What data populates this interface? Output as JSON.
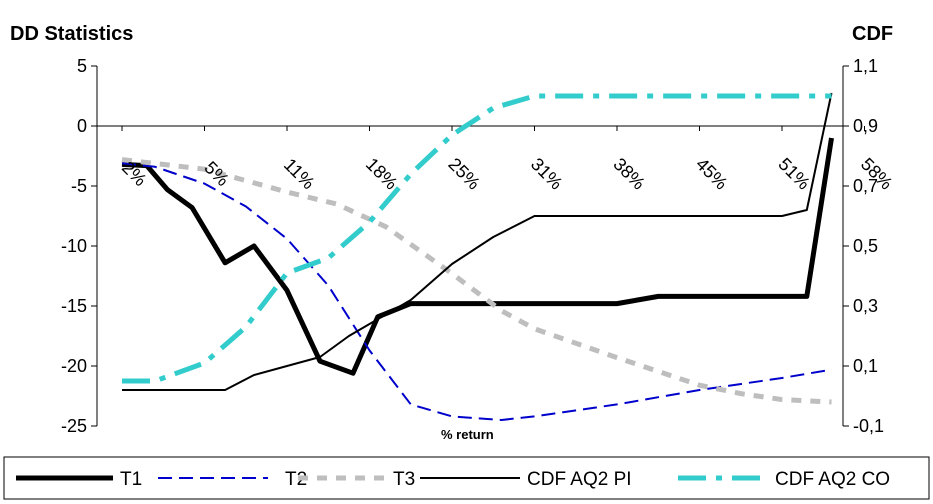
{
  "chart_data": {
    "type": "line",
    "left_axis_title": "DD Statistics",
    "right_axis_title": "CDF",
    "xlabel": "% return",
    "categories": [
      "2%",
      "5%",
      "11%",
      "18%",
      "25%",
      "31%",
      "38%",
      "45%",
      "51%",
      "58%"
    ],
    "y_left": {
      "min": -25,
      "max": 5,
      "ticks": [
        "5",
        "0",
        "-5",
        "-10",
        "-15",
        "-20",
        "-25"
      ]
    },
    "y_right": {
      "min": -0.1,
      "max": 1.1,
      "ticks": [
        "1,1",
        "0,9",
        "0,7",
        "0,5",
        "0,3",
        "0,1",
        "-0,1"
      ]
    },
    "grid": false,
    "legend_position": "bottom",
    "series": [
      {
        "name": "T1",
        "axis": "left",
        "color": "#000000",
        "dash": "solid",
        "width": 5,
        "points": [
          [
            0.0,
            -3.2
          ],
          [
            0.3,
            -3.3
          ],
          [
            0.55,
            -5.3
          ],
          [
            0.85,
            -6.8
          ],
          [
            1.25,
            -11.4
          ],
          [
            1.6,
            -10.0
          ],
          [
            2.0,
            -13.7
          ],
          [
            2.4,
            -19.6
          ],
          [
            2.8,
            -20.6
          ],
          [
            3.1,
            -15.9
          ],
          [
            3.5,
            -14.8
          ],
          [
            4.0,
            -14.8
          ],
          [
            4.5,
            -14.8
          ],
          [
            5.0,
            -14.8
          ],
          [
            5.5,
            -14.8
          ],
          [
            6.0,
            -14.8
          ],
          [
            6.5,
            -14.2
          ],
          [
            7.0,
            -14.2
          ],
          [
            7.5,
            -14.2
          ],
          [
            8.0,
            -14.2
          ],
          [
            8.3,
            -14.2
          ],
          [
            8.6,
            -1.0
          ]
        ]
      },
      {
        "name": "T2",
        "axis": "left",
        "color": "#0000cc",
        "dash": "long",
        "width": 2,
        "points": [
          [
            0.0,
            -3.1
          ],
          [
            0.4,
            -3.4
          ],
          [
            1.0,
            -4.8
          ],
          [
            1.5,
            -6.7
          ],
          [
            2.0,
            -9.4
          ],
          [
            2.5,
            -13.3
          ],
          [
            3.0,
            -18.7
          ],
          [
            3.5,
            -23.2
          ],
          [
            4.0,
            -24.2
          ],
          [
            4.6,
            -24.5
          ],
          [
            5.0,
            -24.2
          ],
          [
            6.0,
            -23.2
          ],
          [
            7.0,
            -22.0
          ],
          [
            8.0,
            -21.0
          ],
          [
            8.6,
            -20.3
          ]
        ]
      },
      {
        "name": "T3",
        "axis": "left",
        "color": "#bebebe",
        "dash": "medium",
        "width": 5,
        "points": [
          [
            0.0,
            -2.8
          ],
          [
            1.0,
            -3.6
          ],
          [
            2.0,
            -5.5
          ],
          [
            2.6,
            -6.5
          ],
          [
            3.2,
            -8.4
          ],
          [
            4.0,
            -12.3
          ],
          [
            4.6,
            -15.4
          ],
          [
            5.0,
            -16.9
          ],
          [
            6.0,
            -19.3
          ],
          [
            7.0,
            -21.6
          ],
          [
            7.5,
            -22.3
          ],
          [
            8.0,
            -22.8
          ],
          [
            8.6,
            -23.0
          ]
        ]
      },
      {
        "name": "CDF AQ2 PI",
        "axis": "right",
        "color": "#000000",
        "dash": "solid",
        "width": 2,
        "points": [
          [
            0.0,
            0.02
          ],
          [
            1.25,
            0.02
          ],
          [
            1.6,
            0.07
          ],
          [
            2.0,
            0.1
          ],
          [
            2.4,
            0.13
          ],
          [
            2.75,
            0.2
          ],
          [
            3.0,
            0.24
          ],
          [
            3.5,
            0.32
          ],
          [
            4.0,
            0.44
          ],
          [
            4.5,
            0.53
          ],
          [
            5.0,
            0.6
          ],
          [
            6.0,
            0.6
          ],
          [
            7.0,
            0.6
          ],
          [
            8.0,
            0.6
          ],
          [
            8.3,
            0.62
          ],
          [
            8.6,
            1.01
          ]
        ]
      },
      {
        "name": "CDF AQ2 CO",
        "axis": "right",
        "color": "#33cccc",
        "dash": "longshort",
        "width": 5,
        "points": [
          [
            0.0,
            0.05
          ],
          [
            0.4,
            0.05
          ],
          [
            1.0,
            0.11
          ],
          [
            1.5,
            0.23
          ],
          [
            2.0,
            0.41
          ],
          [
            2.5,
            0.46
          ],
          [
            3.0,
            0.58
          ],
          [
            3.5,
            0.74
          ],
          [
            4.0,
            0.87
          ],
          [
            4.5,
            0.96
          ],
          [
            5.0,
            1.0
          ],
          [
            6.0,
            1.0
          ],
          [
            7.0,
            1.0
          ],
          [
            8.0,
            1.0
          ],
          [
            8.6,
            1.0
          ]
        ]
      }
    ]
  }
}
